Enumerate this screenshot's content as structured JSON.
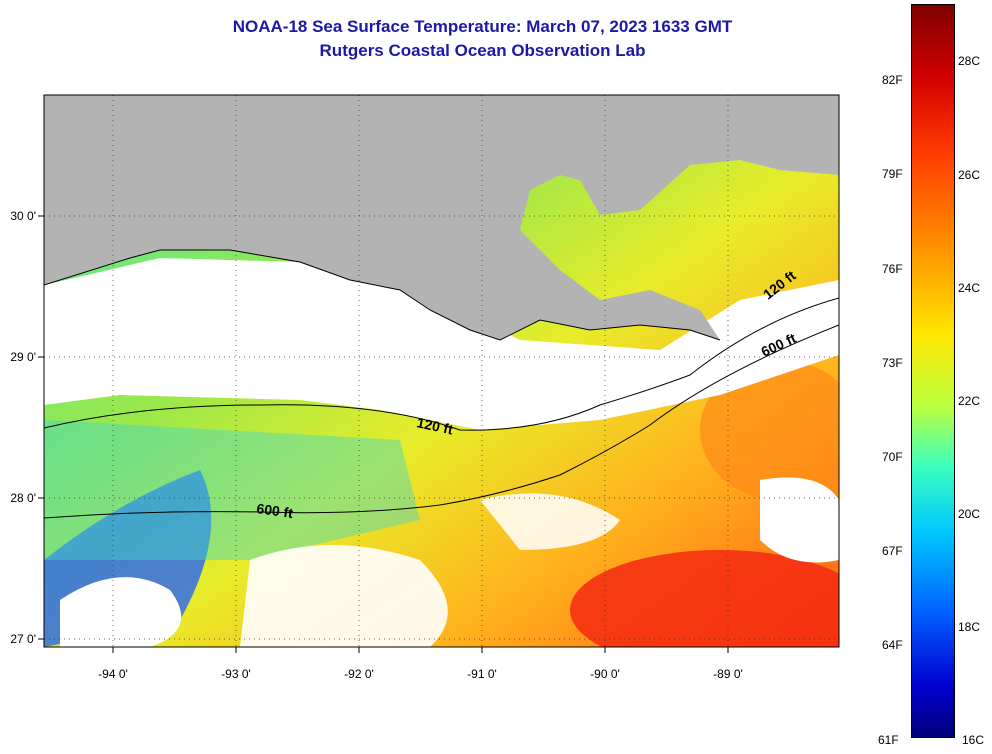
{
  "title": {
    "line1": "NOAA-18 Sea Surface Temperature:  March 07, 2023 1633 GMT",
    "line2": "Rutgers Coastal Ocean Observation Lab"
  },
  "map": {
    "lat_labels": [
      "30 0'",
      "29 0'",
      "28 0'",
      "27 0'"
    ],
    "lon_labels": [
      "-94 0'",
      "-93 0'",
      "-92 0'",
      "-91 0'",
      "-90 0'",
      "-89 0'"
    ],
    "lat_range": [
      26.95,
      30.85
    ],
    "lon_range": [
      -94.5,
      -88.2
    ],
    "isobath_labels": [
      "120 ft",
      "600 ft",
      "120 ft",
      "600 ft"
    ],
    "colors": {
      "land": "#b3b3b3",
      "cloud": "#ffffff",
      "isobath": "#000000"
    }
  },
  "colorbar": {
    "fahrenheit_labels": [
      "82F",
      "79F",
      "76F",
      "73F",
      "70F",
      "67F",
      "64F",
      "61F"
    ],
    "celsius_labels": [
      "28C",
      "26C",
      "24C",
      "22C",
      "20C",
      "18C",
      "16C"
    ],
    "range_c": [
      16,
      29.5
    ]
  }
}
